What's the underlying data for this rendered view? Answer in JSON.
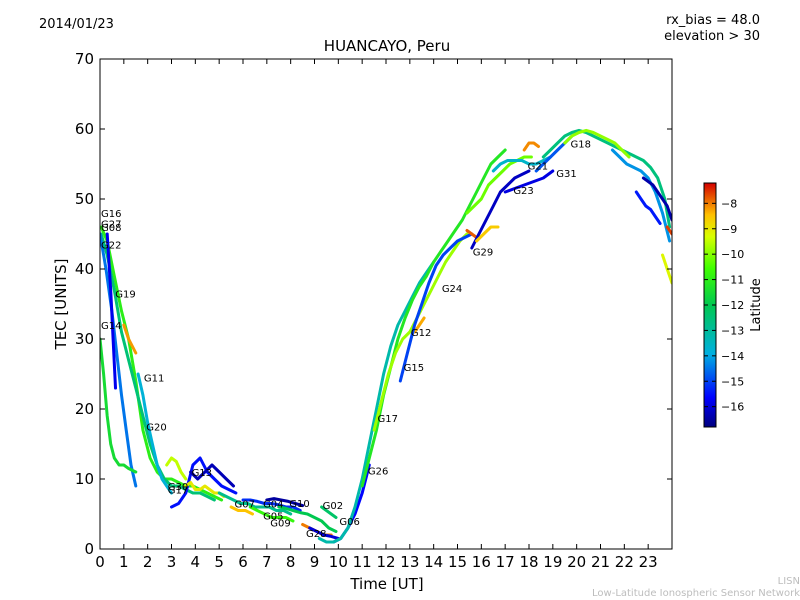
{
  "header": {
    "date": "2014/01/23",
    "bias_label": "rx_bias = 48.0",
    "elevation_label": "elevation > 30"
  },
  "footer": {
    "org_short": "LISN",
    "org_full": "Low-Latitude Ionospheric Sensor Network"
  },
  "colors": {
    "lat_min": "#00007f",
    "lat_mid": "#00c850",
    "lat_max": "#d40000"
  },
  "chart_data": {
    "type": "scatter",
    "title": "HUANCAYO, Peru",
    "xlabel": "Time [UT]",
    "ylabel": "TEC [UNITS]",
    "xlim": [
      0,
      24
    ],
    "ylim": [
      0,
      70
    ],
    "xticks": [
      0,
      1,
      2,
      3,
      4,
      5,
      6,
      7,
      8,
      9,
      10,
      11,
      12,
      13,
      14,
      15,
      16,
      17,
      18,
      19,
      20,
      21,
      22,
      23
    ],
    "yticks": [
      0,
      10,
      20,
      30,
      40,
      50,
      60,
      70
    ],
    "grid": false,
    "colorbar": {
      "label": "Latitude",
      "range": [
        -16.8,
        -7.2
      ],
      "ticks": [
        -8,
        -9,
        -10,
        -11,
        -12,
        -13,
        -14,
        -15,
        -16
      ]
    },
    "satellite_labels": [
      {
        "name": "G16",
        "x": 0.0,
        "y": 48.0
      },
      {
        "name": "G27",
        "x": 0.0,
        "y": 46.5
      },
      {
        "name": "G08",
        "x": 0.0,
        "y": 46.0
      },
      {
        "name": "G22",
        "x": 0.0,
        "y": 43.5
      },
      {
        "name": "G19",
        "x": 0.6,
        "y": 36.5
      },
      {
        "name": "G14",
        "x": 0.0,
        "y": 32.0
      },
      {
        "name": "G11",
        "x": 1.8,
        "y": 24.5
      },
      {
        "name": "G20",
        "x": 1.9,
        "y": 17.5
      },
      {
        "name": "G13",
        "x": 3.8,
        "y": 11.0
      },
      {
        "name": "G30",
        "x": 2.8,
        "y": 9.0
      },
      {
        "name": "G17",
        "x": 2.8,
        "y": 8.5
      },
      {
        "name": "G07",
        "x": 5.6,
        "y": 6.5
      },
      {
        "name": "G04",
        "x": 6.8,
        "y": 6.5
      },
      {
        "name": "G10",
        "x": 7.9,
        "y": 6.6
      },
      {
        "name": "G05",
        "x": 6.8,
        "y": 4.8
      },
      {
        "name": "G09",
        "x": 7.1,
        "y": 3.8
      },
      {
        "name": "G28",
        "x": 8.6,
        "y": 2.3
      },
      {
        "name": "G02",
        "x": 9.3,
        "y": 6.3
      },
      {
        "name": "G06",
        "x": 10.0,
        "y": 4.0
      },
      {
        "name": "G26",
        "x": 11.2,
        "y": 11.2
      },
      {
        "name": "G17",
        "x": 11.6,
        "y": 18.7
      },
      {
        "name": "G15",
        "x": 12.7,
        "y": 26.0
      },
      {
        "name": "G12",
        "x": 13.0,
        "y": 31.0
      },
      {
        "name": "G24",
        "x": 14.3,
        "y": 37.3
      },
      {
        "name": "G29",
        "x": 15.6,
        "y": 42.5
      },
      {
        "name": "G23",
        "x": 17.3,
        "y": 51.3
      },
      {
        "name": "G21",
        "x": 17.9,
        "y": 54.8
      },
      {
        "name": "G31",
        "x": 19.1,
        "y": 53.7
      },
      {
        "name": "G18",
        "x": 19.7,
        "y": 57.9
      }
    ],
    "series": [
      {
        "lat": -11.0,
        "x": [
          0.05,
          0.3,
          0.6,
          0.9,
          1.2,
          1.5,
          1.8,
          2.1,
          2.4,
          2.7,
          3.0,
          3.3,
          3.6,
          3.9,
          4.2,
          4.5,
          4.8,
          5.1
        ],
        "y": [
          46,
          44,
          39,
          34,
          30,
          24,
          17,
          13,
          11,
          10,
          10,
          9.5,
          9,
          9,
          8.5,
          8,
          7.5,
          7
        ]
      },
      {
        "lat": -12.5,
        "x": [
          0.05,
          0.3,
          0.6,
          0.9,
          1.2,
          1.5,
          1.8,
          2.1,
          2.4,
          2.7,
          3.0,
          3.3,
          3.6,
          3.9,
          4.2,
          4.5,
          4.8
        ],
        "y": [
          45,
          42,
          37,
          31,
          27,
          23,
          19,
          15,
          12,
          10,
          9,
          9,
          8.5,
          8,
          8,
          7.5,
          7
        ]
      },
      {
        "lat": -14.5,
        "x": [
          0.0,
          0.25,
          0.5,
          0.7,
          0.9,
          1.1,
          1.3,
          1.5
        ],
        "y": [
          45,
          40,
          34,
          28,
          22,
          17,
          12,
          9
        ]
      },
      {
        "lat": -11.5,
        "x": [
          0.0,
          0.15,
          0.3,
          0.45,
          0.6,
          0.8,
          1.0,
          1.2,
          1.5
        ],
        "y": [
          30,
          25,
          19,
          15,
          13,
          12,
          12,
          11.5,
          11
        ]
      },
      {
        "lat": -15.8,
        "x": [
          0.3,
          0.45,
          0.55,
          0.65
        ],
        "y": [
          45,
          37,
          30,
          23
        ]
      },
      {
        "lat": -8.2,
        "x": [
          1.0,
          1.2,
          1.5
        ],
        "y": [
          32,
          30,
          28
        ]
      },
      {
        "lat": -13.8,
        "x": [
          1.6,
          1.8,
          2.0,
          2.2,
          2.4,
          2.6,
          2.8,
          3.0
        ],
        "y": [
          25,
          22,
          18,
          15,
          12,
          10,
          9,
          8
        ]
      },
      {
        "lat": -9.5,
        "x": [
          2.8,
          3.0,
          3.2,
          3.4,
          3.6
        ],
        "y": [
          12,
          13,
          12.5,
          11,
          10
        ]
      },
      {
        "lat": -15.5,
        "x": [
          3.0,
          3.3,
          3.6,
          3.9,
          4.2,
          4.5,
          4.8,
          5.1,
          5.4,
          5.7
        ],
        "y": [
          6,
          6.5,
          8,
          12,
          13,
          11,
          10,
          9,
          8.5,
          8
        ]
      },
      {
        "lat": -16.3,
        "x": [
          3.8,
          4.1,
          4.4,
          4.7,
          5.0,
          5.3,
          5.6
        ],
        "y": [
          11,
          10,
          11,
          12,
          11,
          10,
          9
        ]
      },
      {
        "lat": -9.0,
        "x": [
          3.6,
          3.8,
          4.0,
          4.2,
          4.4,
          4.6,
          4.8,
          5.0,
          5.2
        ],
        "y": [
          9,
          9.5,
          8.5,
          8.5,
          9,
          8.5,
          8,
          8,
          7.5
        ]
      },
      {
        "lat": -12.8,
        "x": [
          5.0,
          5.3,
          5.6,
          5.9,
          6.2,
          6.5,
          6.8,
          7.1,
          7.4,
          7.7,
          8.0
        ],
        "y": [
          8,
          7.5,
          7,
          6.5,
          6.5,
          6,
          6,
          6,
          5.5,
          5.5,
          5
        ]
      },
      {
        "lat": -8.5,
        "x": [
          5.5,
          5.8,
          6.1,
          6.4
        ],
        "y": [
          6,
          5.5,
          5.5,
          5
        ]
      },
      {
        "lat": -10.8,
        "x": [
          6.3,
          6.6,
          6.9,
          7.2,
          7.5,
          7.8,
          8.1
        ],
        "y": [
          6,
          5.5,
          5,
          4.5,
          4.5,
          4.5,
          4
        ]
      },
      {
        "lat": -15.2,
        "x": [
          6.0,
          6.3,
          6.6,
          6.9,
          7.2,
          7.5,
          7.8,
          8.1,
          8.4
        ],
        "y": [
          7,
          7,
          6.8,
          6.5,
          6.5,
          6.3,
          6,
          6,
          5.5
        ]
      },
      {
        "lat": -16.5,
        "x": [
          7.0,
          7.3,
          7.6,
          7.9,
          8.2,
          8.5
        ],
        "y": [
          7,
          7.2,
          7,
          6.8,
          6.5,
          6.2
        ]
      },
      {
        "lat": -12.0,
        "x": [
          7.5,
          7.8,
          8.1,
          8.4,
          8.7,
          9.0,
          9.3,
          9.6,
          9.9
        ],
        "y": [
          6,
          5.8,
          5.5,
          5.2,
          5,
          4.5,
          4,
          3,
          2.5
        ]
      },
      {
        "lat": -8.0,
        "x": [
          8.5,
          8.8,
          9.1,
          9.4,
          9.7
        ],
        "y": [
          3.5,
          3,
          2.5,
          2,
          2
        ]
      },
      {
        "lat": -16.0,
        "x": [
          8.8,
          9.1,
          9.4,
          9.7,
          10.0
        ],
        "y": [
          3,
          2.5,
          2,
          1.8,
          1.5
        ]
      },
      {
        "lat": -12.3,
        "x": [
          9.3,
          9.5,
          9.7,
          9.9
        ],
        "y": [
          6,
          5.5,
          5,
          4.5
        ]
      },
      {
        "lat": -15.6,
        "x": [
          9.8,
          10.1,
          10.4,
          10.7,
          11.0,
          11.3
        ],
        "y": [
          1,
          1.5,
          3,
          5,
          8,
          12
        ]
      },
      {
        "lat": -13.2,
        "x": [
          9.2,
          9.5,
          9.8,
          10.1,
          10.4,
          10.7,
          11.0,
          11.3,
          11.6,
          11.9,
          12.2,
          12.5,
          12.8,
          13.1,
          13.4,
          13.7,
          14.0
        ],
        "y": [
          1.5,
          1,
          1,
          1.5,
          3,
          6,
          10,
          15,
          20,
          25,
          29,
          32,
          34,
          36,
          38,
          39.5,
          41
        ]
      },
      {
        "lat": -11.2,
        "x": [
          11.0,
          11.3,
          11.6,
          11.9,
          12.2,
          12.5,
          12.8,
          13.1,
          13.4,
          13.7,
          14.0,
          14.3,
          14.6,
          14.9,
          15.2,
          15.5,
          15.8,
          16.1,
          16.4,
          16.7,
          17.0
        ],
        "y": [
          9,
          13,
          17,
          22,
          26,
          30,
          33,
          35.5,
          37.5,
          39,
          41,
          42.5,
          44,
          45.5,
          47,
          49,
          51,
          53,
          55,
          56,
          57
        ]
      },
      {
        "lat": -9.8,
        "x": [
          11.5,
          11.8,
          12.1,
          12.4,
          12.7,
          13.0,
          13.3,
          13.6,
          13.9,
          14.2,
          14.5,
          14.8,
          15.1,
          15.4
        ],
        "y": [
          17,
          21,
          25,
          28,
          30,
          31,
          33,
          35,
          37,
          39,
          41,
          42.5,
          44,
          45
        ]
      },
      {
        "lat": -8.3,
        "x": [
          13.2,
          13.4,
          13.6
        ],
        "y": [
          31,
          32,
          33
        ]
      },
      {
        "lat": -15.0,
        "x": [
          12.6,
          12.9,
          13.2,
          13.5,
          13.8,
          14.1,
          14.4,
          14.7,
          15.0,
          15.3,
          15.6
        ],
        "y": [
          24,
          28,
          32,
          35,
          38,
          40.5,
          42,
          43,
          44,
          44.5,
          45
        ]
      },
      {
        "lat": -7.8,
        "x": [
          15.4,
          15.6,
          15.8
        ],
        "y": [
          45.5,
          45,
          44.5
        ]
      },
      {
        "lat": -16.2,
        "x": [
          15.6,
          15.9,
          16.2,
          16.5,
          16.8,
          17.1,
          17.4,
          17.7,
          18.0
        ],
        "y": [
          43,
          45,
          47,
          49,
          51,
          52,
          53,
          53.5,
          54
        ]
      },
      {
        "lat": -8.6,
        "x": [
          15.8,
          16.1,
          16.4,
          16.7
        ],
        "y": [
          44,
          45,
          46,
          46
        ]
      },
      {
        "lat": -10.2,
        "x": [
          15.4,
          15.7,
          16.0,
          16.3,
          16.6,
          16.9,
          17.2,
          17.5,
          17.8,
          18.1
        ],
        "y": [
          48,
          49,
          50,
          52,
          53,
          54,
          55,
          55.5,
          56,
          56
        ]
      },
      {
        "lat": -13.6,
        "x": [
          16.5,
          16.8,
          17.1,
          17.4,
          17.7,
          18.0,
          18.3,
          18.6,
          18.9
        ],
        "y": [
          54,
          55,
          55.5,
          55.5,
          55.5,
          55,
          55,
          55.5,
          56
        ]
      },
      {
        "lat": -15.9,
        "x": [
          17.0,
          17.4,
          17.8,
          18.2,
          18.6,
          19.0
        ],
        "y": [
          51,
          51.5,
          52,
          52.5,
          53,
          54
        ]
      },
      {
        "lat": -14.8,
        "x": [
          18.3,
          18.6,
          18.9,
          19.2,
          19.5,
          19.8
        ],
        "y": [
          54,
          55,
          56,
          57,
          58,
          59
        ]
      },
      {
        "lat": -12.6,
        "x": [
          18.6,
          18.9,
          19.2,
          19.5,
          19.8,
          20.1,
          20.4,
          20.7,
          21.0,
          21.3,
          21.6,
          21.9,
          22.2,
          22.5,
          22.8,
          23.1,
          23.4,
          23.7,
          23.9
        ],
        "y": [
          56,
          57,
          58,
          59,
          59.5,
          59.8,
          59.5,
          59,
          58.5,
          58,
          57.5,
          57,
          56.5,
          56,
          55.5,
          54.5,
          53,
          50,
          46
        ]
      },
      {
        "lat": -8.1,
        "x": [
          17.8,
          18.0,
          18.2,
          18.4
        ],
        "y": [
          57,
          58,
          58,
          57.5
        ]
      },
      {
        "lat": -9.9,
        "x": [
          19.5,
          19.8,
          20.1,
          20.4,
          20.7,
          21.0,
          21.3,
          21.6,
          21.9,
          22.2
        ],
        "y": [
          58,
          59,
          59.5,
          59.8,
          59.5,
          59,
          58.5,
          58,
          57,
          56
        ]
      },
      {
        "lat": -14.2,
        "x": [
          21.5,
          21.8,
          22.1,
          22.4,
          22.7,
          23.0,
          23.3,
          23.6,
          23.9
        ],
        "y": [
          57,
          56,
          55,
          54.5,
          54,
          53,
          51,
          48,
          44
        ]
      },
      {
        "lat": -16.4,
        "x": [
          22.8,
          23.0,
          23.2,
          23.4,
          23.6,
          23.8,
          24.0
        ],
        "y": [
          53,
          52.5,
          52,
          51,
          50,
          49,
          47
        ]
      },
      {
        "lat": -15.4,
        "x": [
          22.5,
          22.7,
          22.9,
          23.1,
          23.3,
          23.5
        ],
        "y": [
          51,
          50,
          49,
          48.5,
          47.5,
          46.5
        ]
      },
      {
        "lat": -9.2,
        "x": [
          23.6,
          23.8,
          24.0
        ],
        "y": [
          42,
          40,
          38
        ]
      },
      {
        "lat": -7.6,
        "x": [
          23.8,
          24.0
        ],
        "y": [
          46,
          45
        ]
      }
    ]
  }
}
